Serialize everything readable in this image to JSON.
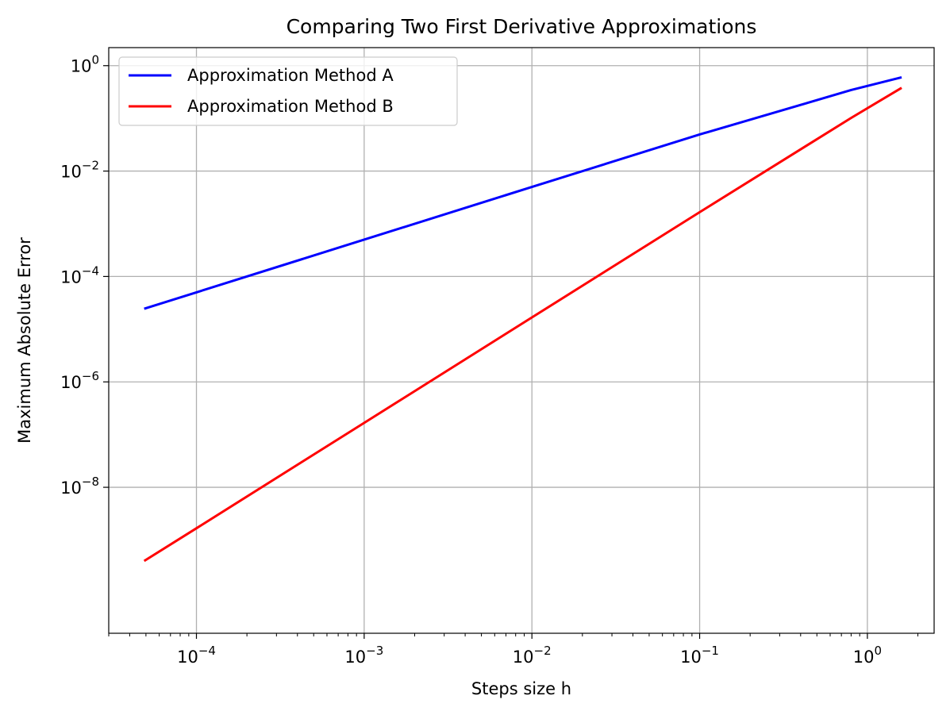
{
  "chart_data": {
    "type": "line",
    "title": "Comparing Two First Derivative Approximations",
    "xlabel": "Steps size h",
    "ylabel": "Maximum Absolute Error",
    "xscale": "log",
    "yscale": "log",
    "xlim": [
      3e-05,
      2.5
    ],
    "ylim": [
      1.7e-11,
      2.2
    ],
    "x_ticks": [
      {
        "value": 0.0001,
        "base": "10",
        "exp": "−4"
      },
      {
        "value": 0.001,
        "base": "10",
        "exp": "−3"
      },
      {
        "value": 0.01,
        "base": "10",
        "exp": "−2"
      },
      {
        "value": 0.1,
        "base": "10",
        "exp": "−1"
      },
      {
        "value": 1,
        "base": "10",
        "exp": "0"
      }
    ],
    "y_ticks": [
      {
        "value": 1e-08,
        "base": "10",
        "exp": "−8"
      },
      {
        "value": 1e-06,
        "base": "10",
        "exp": "−6"
      },
      {
        "value": 0.0001,
        "base": "10",
        "exp": "−4"
      },
      {
        "value": 0.01,
        "base": "10",
        "exp": "−2"
      },
      {
        "value": 1,
        "base": "10",
        "exp": "0"
      }
    ],
    "grid": true,
    "legend_position": "top-left",
    "series": [
      {
        "name": "Approximation Method A",
        "color": "#0000ff",
        "x": [
          4.88e-05,
          0.0001,
          0.001,
          0.01,
          0.1,
          0.4,
          0.8,
          1.6
        ],
        "y": [
          2.44e-05,
          5e-05,
          0.0005,
          0.005,
          0.0495,
          0.18,
          0.345,
          0.6
        ]
      },
      {
        "name": "Approximation Method B",
        "color": "#ff0000",
        "x": [
          4.88e-05,
          0.0001,
          0.001,
          0.01,
          0.1,
          0.8,
          1.6
        ],
        "y": [
          4e-10,
          1.67e-09,
          1.67e-07,
          1.67e-05,
          0.00166,
          0.102,
          0.38
        ]
      }
    ]
  }
}
